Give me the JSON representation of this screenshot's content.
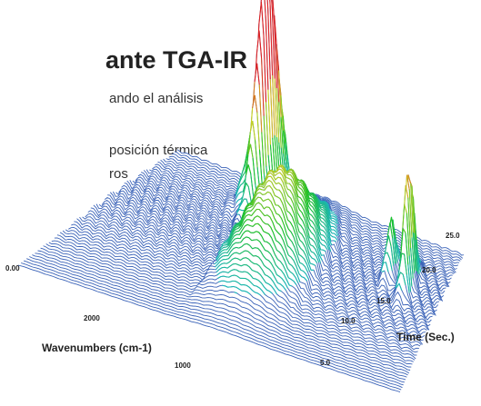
{
  "document": {
    "heading": "ante TGA-IR",
    "lines": [
      "ando el análisis",
      "posición térmica",
      "ros"
    ]
  },
  "figure": {
    "x_label": "Wavenumbers (cm-1)",
    "y_label": "Time (Sec.)",
    "x_tick_labels": [
      "2000",
      "1000"
    ],
    "y_tick_labels": [
      "5.0",
      "10.0",
      "15.0",
      "20.0",
      "25.0"
    ],
    "z_tick_labels": [
      "0.00"
    ]
  }
}
